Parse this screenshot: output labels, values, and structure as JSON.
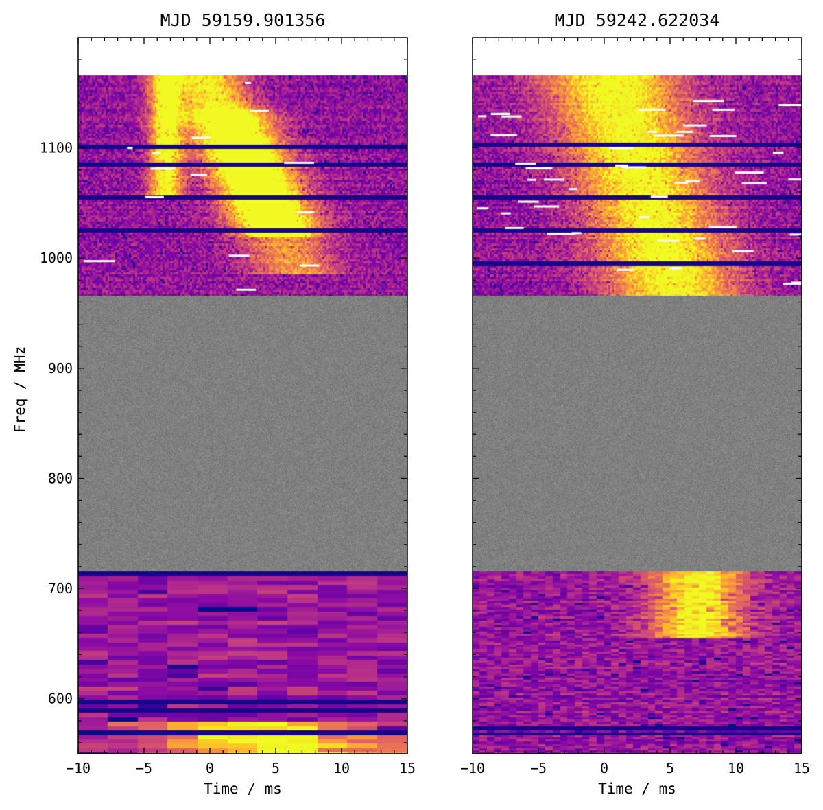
{
  "figure": {
    "ylabel": "Freq / MHz",
    "xlabel": "Time / ms"
  },
  "chart_data": [
    {
      "type": "heatmap",
      "title": "MJD 59159.901356",
      "xlabel": "Time / ms",
      "ylabel": "Freq / MHz",
      "xlim": [
        -10,
        15
      ],
      "ylim": [
        550,
        1200
      ],
      "xticks": [
        -10,
        -5,
        0,
        5,
        10,
        15
      ],
      "yticks": [
        600,
        700,
        800,
        900,
        1000,
        1100
      ],
      "colormap": "plasma",
      "masked_color": "#808080",
      "masked_band_mhz": [
        750,
        1000
      ],
      "bands": [
        {
          "name": "upper",
          "freq_range": [
            1000,
            1200
          ],
          "time_resolution_ms": 0.15,
          "channels": 100
        },
        {
          "name": "lower",
          "freq_range": [
            550,
            750
          ],
          "time_resolution_ms": 2.3,
          "channels": 50
        }
      ],
      "burst_components": [
        {
          "freq_range": [
            1090,
            1200
          ],
          "t_at_top": -3.3,
          "drift_ms_per_mhz": 0.0,
          "width_ms": 0.9,
          "intensity": 1.0
        },
        {
          "freq_range": [
            1055,
            1200
          ],
          "t_at_top": -0.4,
          "drift_ms_per_mhz": 0.04,
          "width_ms": 2.0,
          "intensity": 0.95
        },
        {
          "freq_range": [
            1020,
            1170
          ],
          "t_at_top": 1.5,
          "drift_ms_per_mhz": 0.035,
          "width_ms": 2.4,
          "intensity": 0.6
        },
        {
          "freq_range": [
            555,
            615
          ],
          "t_at_top": 2.5,
          "drift_ms_per_mhz": 0.12,
          "width_ms": 6.0,
          "intensity": 0.95
        }
      ],
      "flagged_freqs_mhz": [
        1136,
        1120,
        1090,
        1060,
        605,
        625,
        632,
        638,
        748
      ]
    },
    {
      "type": "heatmap",
      "title": "MJD 59242.622034",
      "xlabel": "Time / ms",
      "ylabel": "",
      "xlim": [
        -10,
        15
      ],
      "ylim": [
        550,
        1200
      ],
      "xticks": [
        -10,
        -5,
        0,
        5,
        10,
        15
      ],
      "yticks": [
        600,
        700,
        800,
        900,
        1000,
        1100
      ],
      "colormap": "plasma",
      "masked_color": "#808080",
      "masked_band_mhz": [
        750,
        1000
      ],
      "bands": [
        {
          "name": "upper",
          "freq_range": [
            1000,
            1200
          ],
          "time_resolution_ms": 0.15,
          "channels": 100
        },
        {
          "name": "lower",
          "freq_range": [
            550,
            750
          ],
          "time_resolution_ms": 0.55,
          "channels": 100
        }
      ],
      "burst_components": [
        {
          "freq_range": [
            1000,
            1200
          ],
          "t_at_top": 0.5,
          "drift_ms_per_mhz": 0.025,
          "width_ms": 3.5,
          "intensity": 1.0
        },
        {
          "freq_range": [
            690,
            750
          ],
          "t_at_top": 7.0,
          "drift_ms_per_mhz": 0.0,
          "width_ms": 2.4,
          "intensity": 0.95
        }
      ],
      "flagged_freqs_mhz": [
        1138,
        1120,
        1090,
        1060,
        1030,
        603,
        608
      ]
    }
  ]
}
